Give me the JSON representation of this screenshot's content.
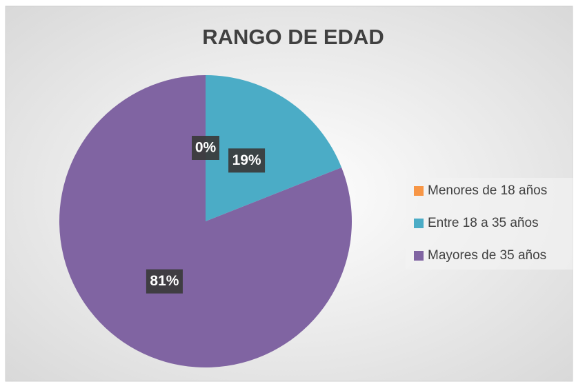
{
  "chart_data": {
    "type": "pie",
    "title": "RANGO DE EDAD",
    "categories": [
      "Menores de 18 años",
      "Entre 18 a 35 años",
      "Mayores de 35 años"
    ],
    "values": [
      0,
      19,
      81
    ],
    "value_labels": [
      "0%",
      "19%",
      "81%"
    ],
    "colors": [
      "#f79646",
      "#4bacc6",
      "#8064a2"
    ],
    "legend": "right"
  }
}
